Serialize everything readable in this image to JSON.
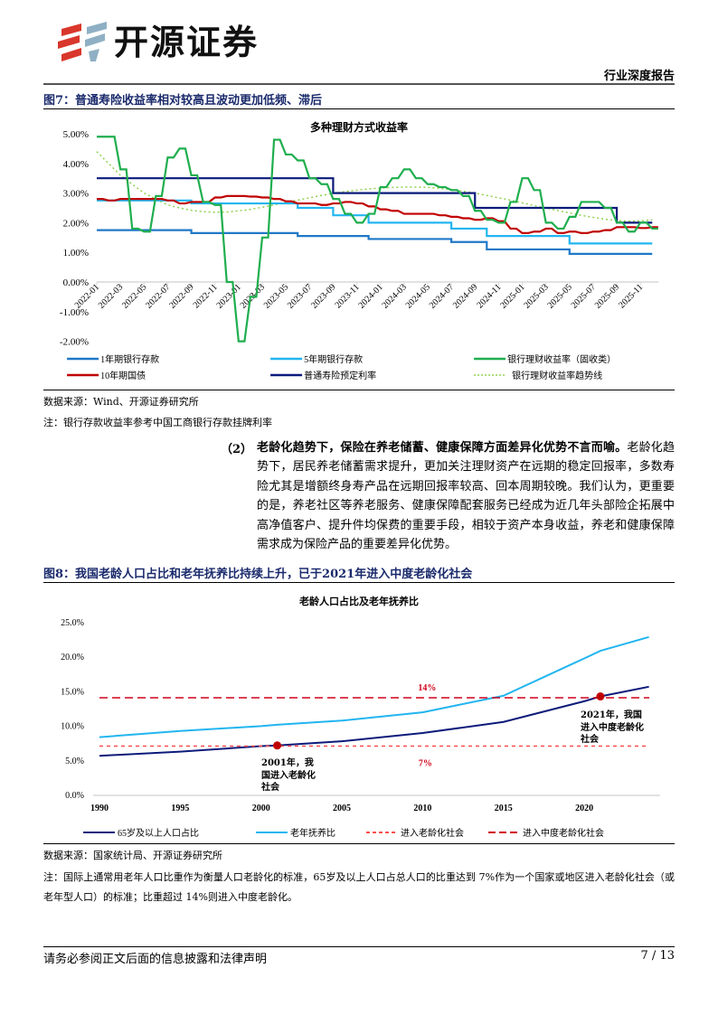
{
  "header": {
    "logo_text": "开源证券",
    "report_type": "行业深度报告"
  },
  "figure7": {
    "caption": "图7：普通寿险收益率相对较高且波动更加低频、滞后",
    "source": "数据来源：Wind、开源证券研究所",
    "note": "注：银行存款收益率参考中国工商银行存款挂牌利率"
  },
  "paragraph": {
    "number": "（2）",
    "lead": "老龄化趋势下，保险在养老储蓄、健康保障方面差异化优势不言而喻。",
    "body": "老龄化趋势下，居民养老储蓄需求提升，更加关注理财资产在远期的稳定回报率，多数寿险尤其是增额终身寿产品在远期回报率较高、回本周期较晚。我们认为，更重要的是，养老社区等养老服务、健康保障配套服务已经成为近几年头部险企拓展中高净值客户、提升件均保费的重要手段，相较于资产本身收益，养老和健康保障需求成为保险产品的重要差异化优势。"
  },
  "figure8": {
    "caption": "图8：我国老龄人口占比和老年抚养比持续上升，已于2021年进入中度老龄化社会",
    "source": "数据来源：国家统计局、开源证券研究所",
    "note": "注：国际上通常用老年人口比重作为衡量人口老龄化的标准，65岁及以上人口占总人口的比重达到 7%作为一个国家或地区进入老龄化社会（或老年型人口）的标准；比重超过 14%则进入中度老龄化。"
  },
  "footer": {
    "disclaimer": "请务必参阅正文后面的信息披露和法律声明",
    "page": "7 / 13"
  },
  "chart_data": [
    {
      "type": "line",
      "title": "多种理财方式收益率",
      "ylim": [
        -2,
        5
      ],
      "yticks": [
        "5.00%",
        "4.00%",
        "3.00%",
        "2.00%",
        "1.00%",
        "0.00%",
        "-1.00%",
        "-2.00%"
      ],
      "ytick_values": [
        5,
        4,
        3,
        2,
        1,
        0,
        -1,
        -2
      ],
      "xticks": [
        "2022-01",
        "2022-03",
        "2022-05",
        "2022-07",
        "2022-09",
        "2022-11",
        "2023-01",
        "2023-03",
        "2023-05",
        "2023-07",
        "2023-09",
        "2023-11",
        "2024-01",
        "2024-03",
        "2024-05",
        "2024-07",
        "2024-09",
        "2024-11",
        "2025-01",
        "2025-03",
        "2025-05",
        "2025-07",
        "2025-09",
        "2025-11"
      ],
      "x_start": "2022-01",
      "legend_position": "bottom",
      "series": [
        {
          "name": "1年期银行存款",
          "color": "#1f78c8",
          "style": "step",
          "points": [
            [
              "2022-01",
              1.75
            ],
            [
              "2022-09",
              1.65
            ],
            [
              "2023-06",
              1.55
            ],
            [
              "2023-12",
              1.45
            ],
            [
              "2024-07",
              1.35
            ],
            [
              "2024-10",
              1.1
            ],
            [
              "2025-05",
              0.95
            ],
            [
              "2025-12",
              0.95
            ]
          ]
        },
        {
          "name": "5年期银行存款",
          "color": "#22b5f0",
          "style": "step",
          "points": [
            [
              "2022-01",
              2.75
            ],
            [
              "2022-09",
              2.65
            ],
            [
              "2023-06",
              2.5
            ],
            [
              "2023-09",
              2.25
            ],
            [
              "2023-12",
              2.0
            ],
            [
              "2024-07",
              1.8
            ],
            [
              "2024-10",
              1.55
            ],
            [
              "2025-05",
              1.3
            ],
            [
              "2025-12",
              1.3
            ]
          ]
        },
        {
          "name": "银行理财收益率（固收类）",
          "color": "#1fae4e",
          "style": "line",
          "monthly": [
            4.9,
            4.9,
            3.8,
            1.8,
            1.7,
            2.9,
            4.2,
            4.5,
            3.6,
            2.7,
            2.6,
            0.0,
            -2.0,
            -0.5,
            1.5,
            4.8,
            4.3,
            4.1,
            3.5,
            3.3,
            2.8,
            2.3,
            2.0,
            2.3,
            3.2,
            3.5,
            3.8,
            3.5,
            3.3,
            3.2,
            3.1,
            2.9,
            2.4,
            2.1,
            2.0,
            2.7,
            3.5,
            3.1,
            2.0,
            1.8,
            2.2,
            2.7,
            2.7,
            2.5,
            2.0,
            1.7,
            2.0,
            1.8
          ]
        },
        {
          "name": "10年期国债",
          "color": "#c00000",
          "style": "line",
          "monthly": [
            2.8,
            2.75,
            2.8,
            2.8,
            2.8,
            2.8,
            2.75,
            2.65,
            2.7,
            2.7,
            2.85,
            2.9,
            2.9,
            2.88,
            2.85,
            2.8,
            2.72,
            2.65,
            2.65,
            2.6,
            2.65,
            2.7,
            2.65,
            2.55,
            2.45,
            2.4,
            2.3,
            2.3,
            2.3,
            2.25,
            2.2,
            2.15,
            2.1,
            2.15,
            2.05,
            1.8,
            1.65,
            1.7,
            1.8,
            1.65,
            1.7,
            1.65,
            1.7,
            1.75,
            1.85,
            1.85,
            1.82,
            1.85
          ]
        },
        {
          "name": "普通寿险预定利率",
          "color": "#0a1a7a",
          "style": "step",
          "points": [
            [
              "2022-01",
              3.5
            ],
            [
              "2023-09",
              3.0
            ],
            [
              "2024-09",
              2.5
            ],
            [
              "2025-09",
              2.0
            ],
            [
              "2025-12",
              2.0
            ]
          ]
        },
        {
          "name": "银行理财收益率趋势线",
          "color": "#8fd14f",
          "style": "dotted",
          "monthly": [
            4.4,
            4.0,
            3.6,
            3.3,
            3.0,
            2.8,
            2.6,
            2.5,
            2.42,
            2.37,
            2.35,
            2.36,
            2.4,
            2.45,
            2.52,
            2.6,
            2.68,
            2.76,
            2.84,
            2.92,
            2.99,
            3.05,
            3.1,
            3.14,
            3.17,
            3.19,
            3.2,
            3.2,
            3.19,
            3.16,
            3.12,
            3.06,
            3.0,
            2.92,
            2.84,
            2.76,
            2.67,
            2.58,
            2.5,
            2.41,
            2.33,
            2.25,
            2.18,
            2.12,
            2.07,
            2.05,
            2.06,
            2.1
          ]
        }
      ]
    },
    {
      "type": "line",
      "title": "老龄人口占比及老年抚养比",
      "ylim": [
        0,
        25
      ],
      "yticks": [
        "25.0%",
        "20.0%",
        "15.0%",
        "10.0%",
        "5.0%",
        "0.0%"
      ],
      "ytick_values": [
        25,
        20,
        15,
        10,
        5,
        0
      ],
      "xticks": [
        "1990",
        "1995",
        "2000",
        "2005",
        "2010",
        "2015",
        "2020"
      ],
      "xtick_values": [
        1990,
        1995,
        2000,
        2005,
        2010,
        2015,
        2020
      ],
      "x": [
        1990,
        1995,
        2000,
        2001,
        2005,
        2010,
        2015,
        2020,
        2021,
        2024
      ],
      "legend_position": "bottom",
      "series": [
        {
          "name": "65岁及以上人口占比",
          "color": "#0d1b7a",
          "values": [
            5.6,
            6.2,
            7.0,
            7.1,
            7.7,
            8.9,
            10.5,
            13.5,
            14.2,
            15.6
          ]
        },
        {
          "name": "老年抚养比",
          "color": "#22b5f0",
          "values": [
            8.3,
            9.2,
            9.9,
            10.1,
            10.7,
            11.9,
            14.3,
            19.7,
            20.8,
            22.8
          ]
        },
        {
          "name": "进入老龄化社会",
          "color": "#ff4d4d",
          "style": "dotted",
          "constant": 7
        },
        {
          "name": "进入中度老龄化社会",
          "color": "#d0021b",
          "style": "dashed",
          "constant": 14
        }
      ],
      "annotations": [
        {
          "text": "14%",
          "x": 2010,
          "y": 14,
          "color": "#d0021b"
        },
        {
          "text": "7%",
          "x": 2010,
          "y": 7,
          "color": "#d0021b"
        },
        {
          "text": "2001年，我国进入老龄化社会",
          "x": 2001,
          "y": 7.1
        },
        {
          "text": "2021年，我国进入中度老龄化社会",
          "x": 2021,
          "y": 14.2
        }
      ],
      "markers_color": "#c00000"
    }
  ]
}
